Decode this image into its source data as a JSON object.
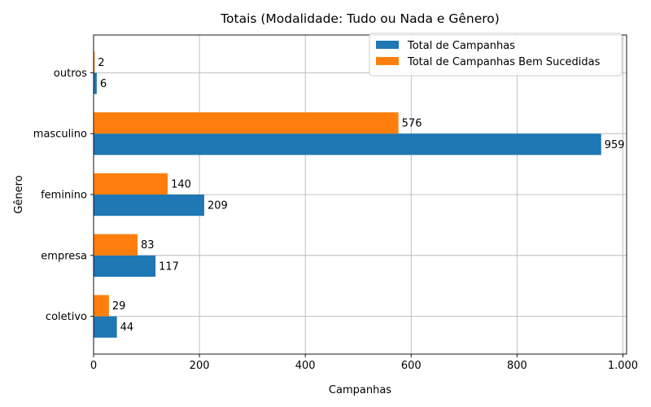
{
  "chart_data": {
    "type": "bar",
    "orientation": "horizontal",
    "title": "Totais (Modalidade: Tudo ou Nada e Gênero)",
    "xlabel": "Campanhas",
    "ylabel": "Gênero",
    "categories": [
      "coletivo",
      "empresa",
      "feminino",
      "masculino",
      "outros"
    ],
    "series": [
      {
        "name": "Total de Campanhas",
        "values": [
          44,
          117,
          209,
          959,
          6
        ],
        "color": "#1f77b4"
      },
      {
        "name": "Total de Campanhas Bem Sucedidas",
        "values": [
          29,
          83,
          140,
          576,
          2
        ],
        "color": "#ff7f0e"
      }
    ],
    "xlim": [
      0,
      1007
    ],
    "xticks": [
      0,
      200,
      400,
      600,
      800,
      1000
    ],
    "xtick_labels": [
      "0",
      "200",
      "400",
      "600",
      "800",
      "1.000"
    ],
    "grid": true,
    "legend_position": "top-right"
  }
}
